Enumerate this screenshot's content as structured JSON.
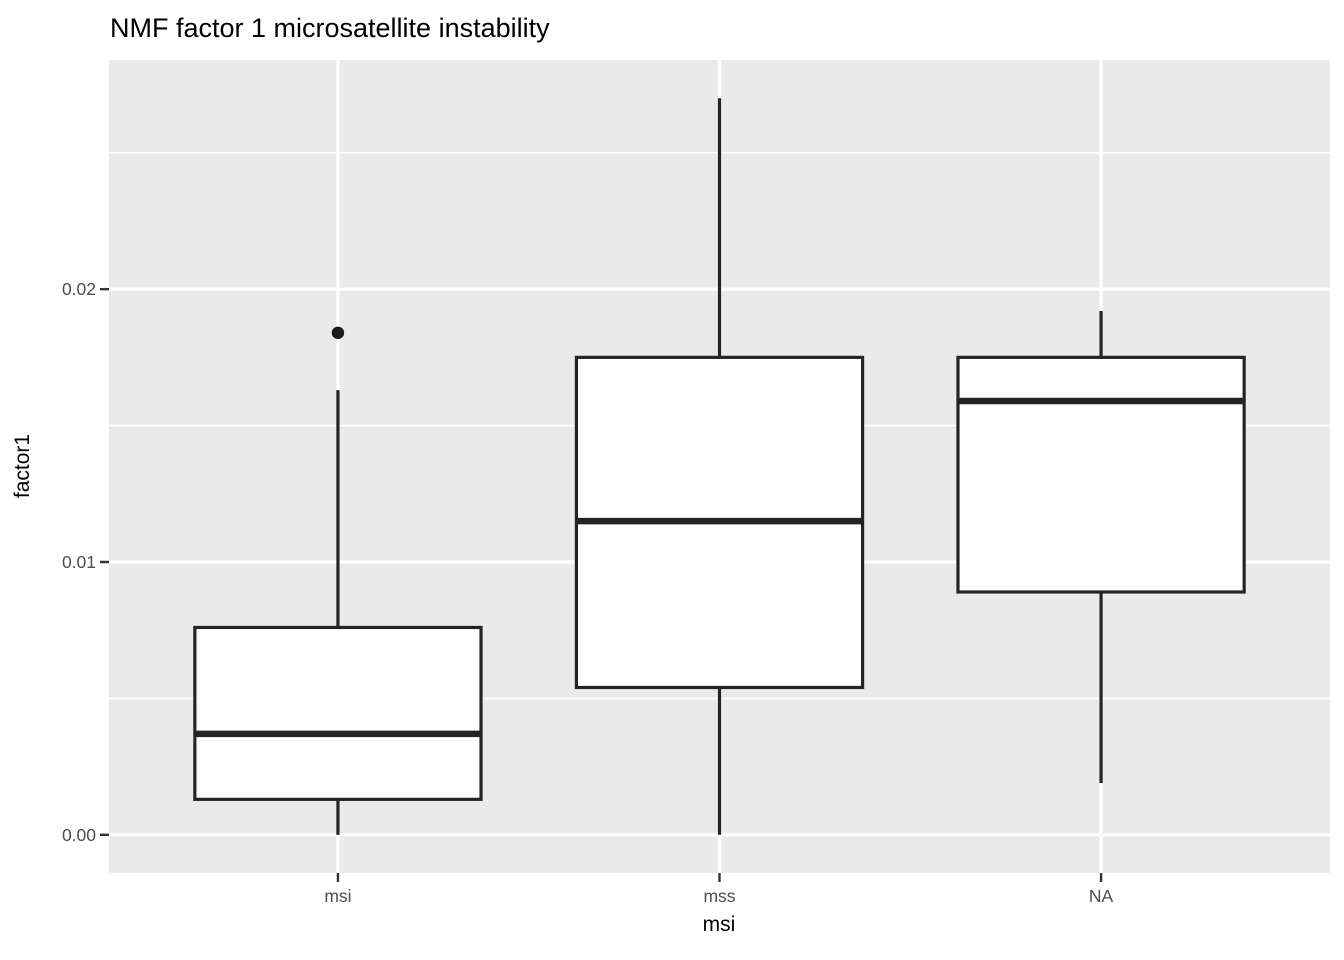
{
  "title": "NMF factor 1 microsatellite instability",
  "chart_data": {
    "type": "boxplot",
    "title": "NMF factor 1 microsatellite instability",
    "xlabel": "msi",
    "ylabel": "factor1",
    "categories": [
      "msi",
      "mss",
      "NA"
    ],
    "ylim": [
      -0.0014,
      0.0284
    ],
    "grid": "on",
    "legend": "none",
    "y_major_ticks": [
      {
        "value": 0.0,
        "label": "0.00"
      },
      {
        "value": 0.01,
        "label": "0.01"
      },
      {
        "value": 0.02,
        "label": "0.02"
      }
    ],
    "y_minor_ticks": [
      0.005,
      0.015,
      0.025
    ],
    "series": [
      {
        "category": "msi",
        "min": 0.0,
        "q1": 0.0013,
        "median": 0.0037,
        "q3": 0.0076,
        "max": 0.0163,
        "outliers": [
          0.0184
        ]
      },
      {
        "category": "mss",
        "min": 0.0,
        "q1": 0.0054,
        "median": 0.0115,
        "q3": 0.0175,
        "max": 0.027,
        "outliers": []
      },
      {
        "category": "NA",
        "min": 0.0019,
        "q1": 0.0089,
        "median": 0.0159,
        "q3": 0.0175,
        "max": 0.0192,
        "outliers": []
      }
    ],
    "colors": {
      "panel_background": "#EAEAEA",
      "gridline": "#FFFFFF",
      "box_fill": "#FFFFFF",
      "box_stroke": "#242424",
      "outlier": "#1A1A1A",
      "tick_mark": "#333333",
      "tick_label": "#4D4D4D",
      "title_text": "#000000"
    }
  }
}
